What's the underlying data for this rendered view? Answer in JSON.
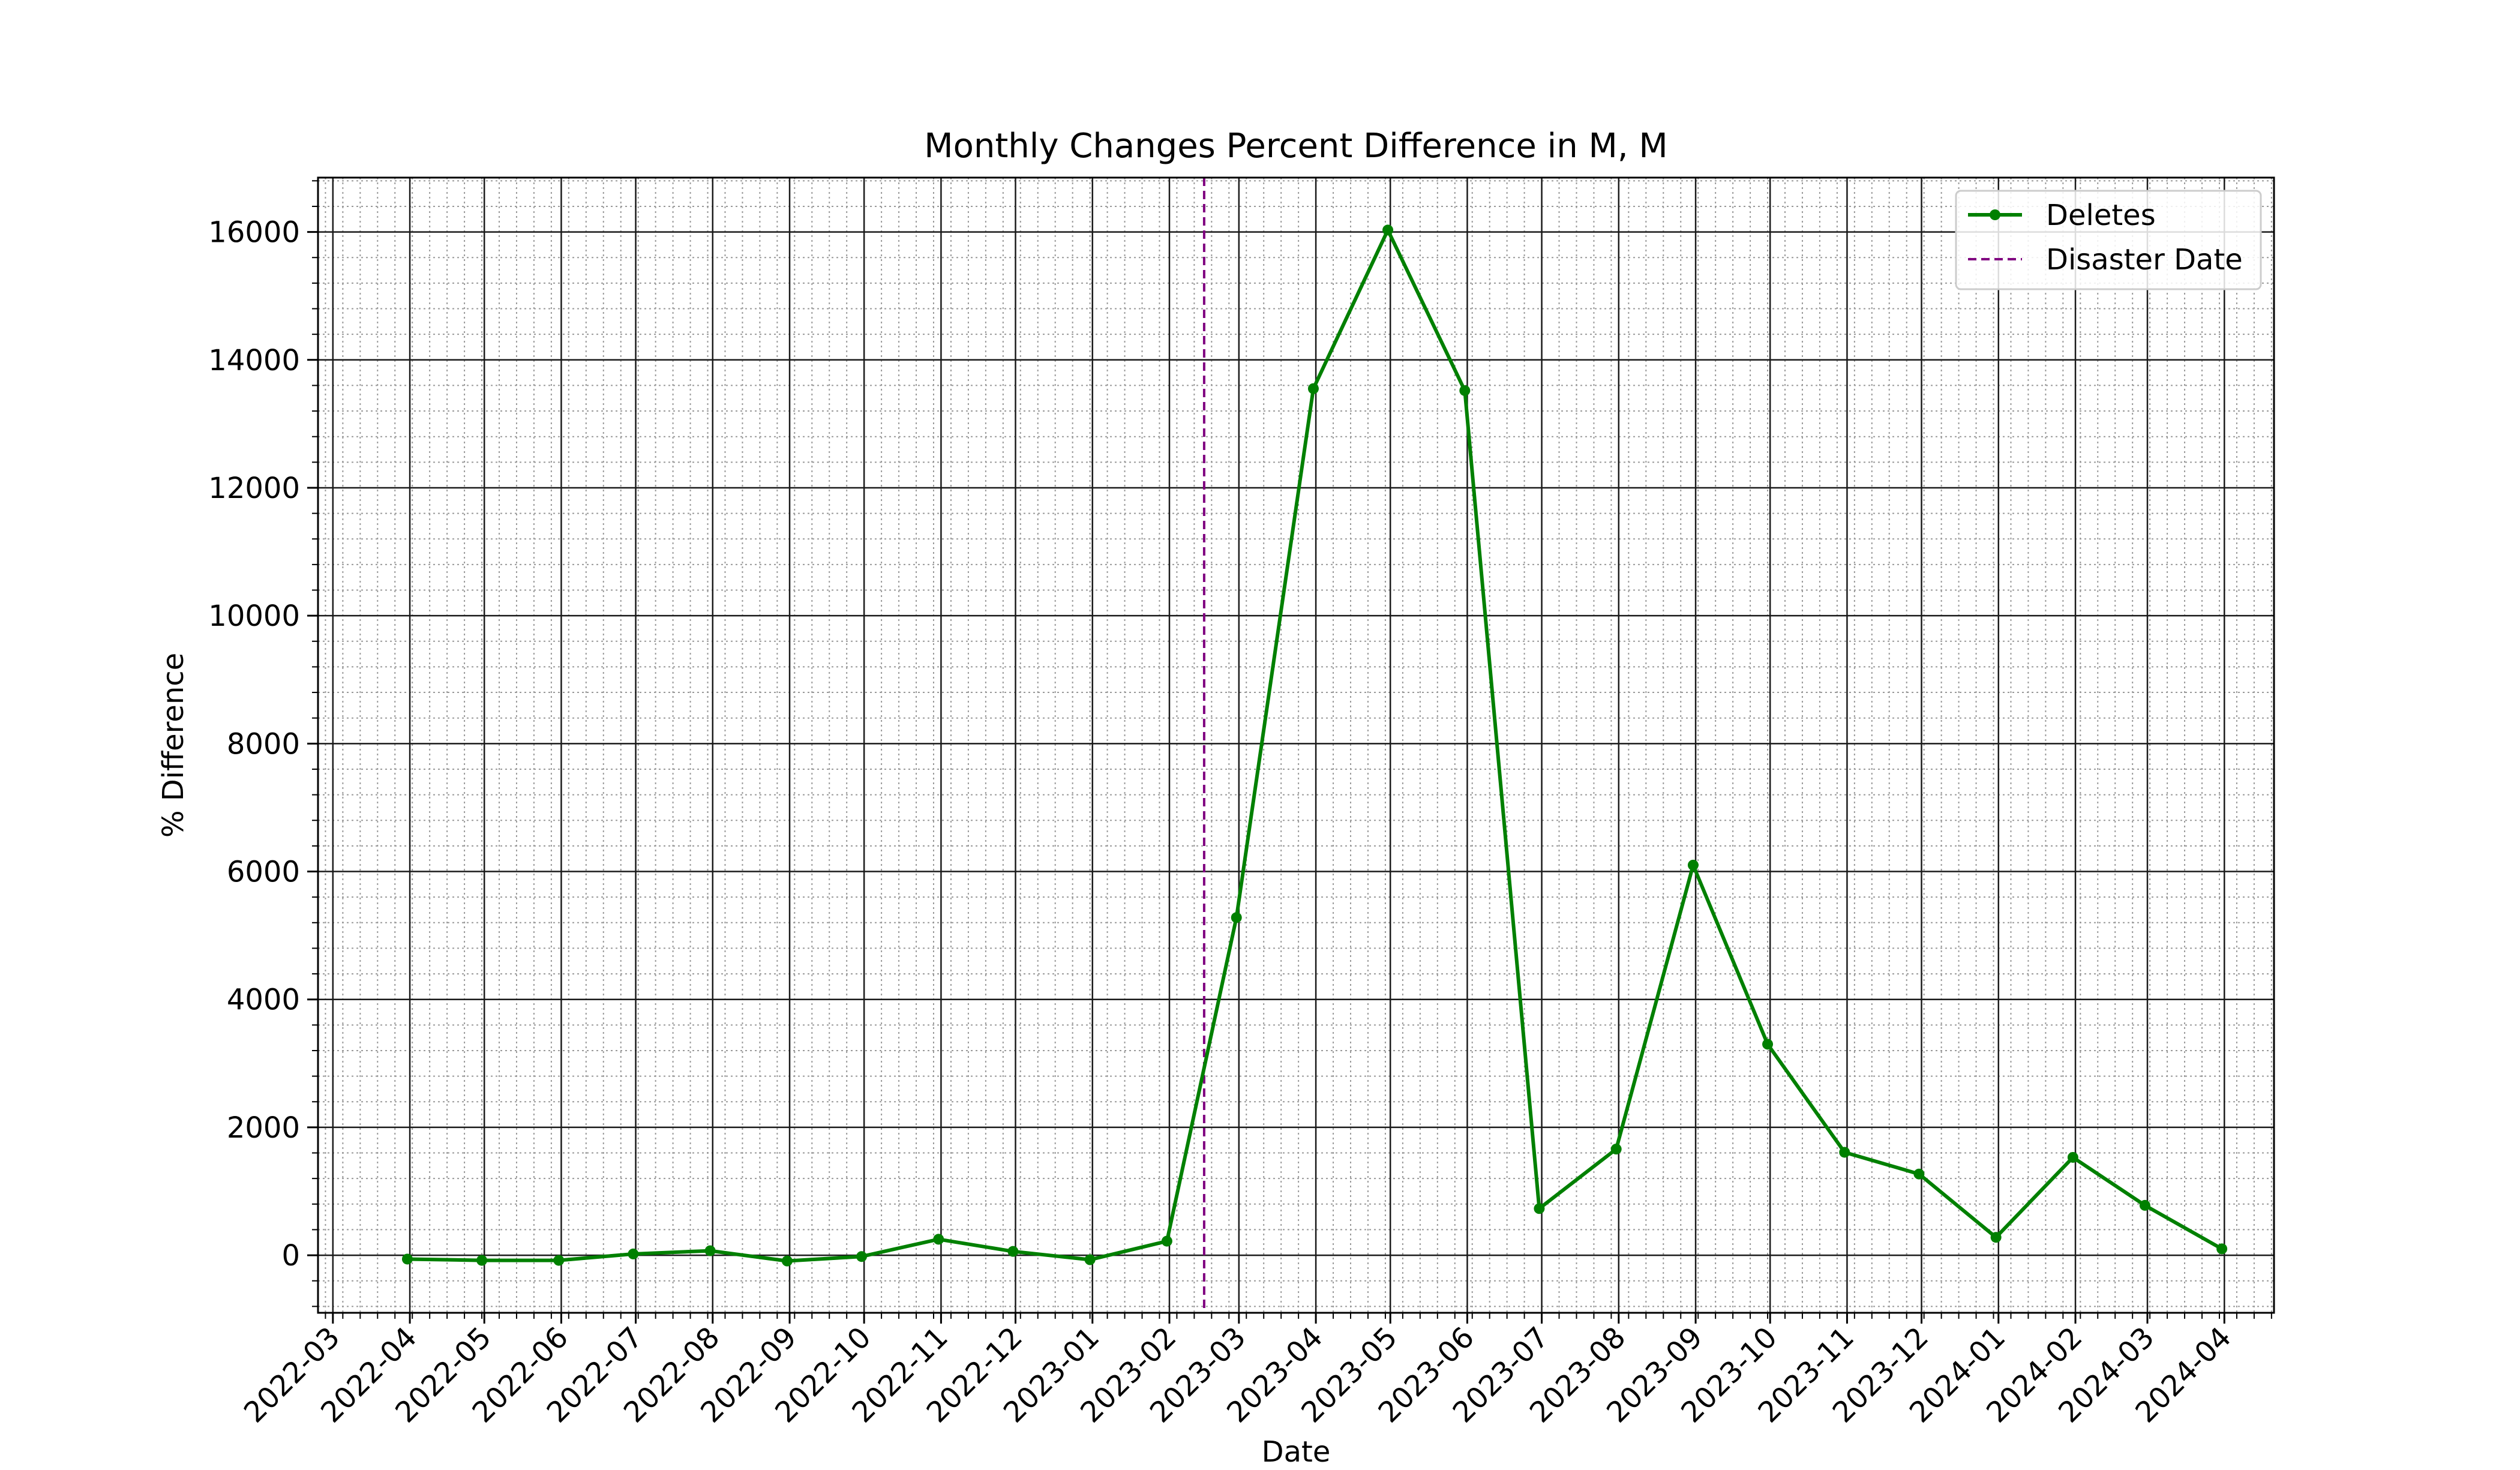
{
  "chart_data": {
    "type": "line",
    "title": "Monthly Changes Percent Difference in M, M",
    "xlabel": "Date",
    "ylabel": "% Difference",
    "x_ticks": [
      "2022-03",
      "2022-04",
      "2022-05",
      "2022-06",
      "2022-07",
      "2022-08",
      "2022-09",
      "2022-10",
      "2022-11",
      "2022-12",
      "2023-01",
      "2023-02",
      "2023-03",
      "2023-04",
      "2023-05",
      "2023-06",
      "2023-07",
      "2023-08",
      "2023-09",
      "2023-10",
      "2023-11",
      "2023-12",
      "2024-01",
      "2024-02",
      "2024-03",
      "2024-04"
    ],
    "y_ticks": [
      0,
      2000,
      4000,
      6000,
      8000,
      10000,
      12000,
      14000,
      16000
    ],
    "ylim": [
      -900,
      16850
    ],
    "xlim": [
      "2022-02-23",
      "2024-04-21"
    ],
    "grid": true,
    "legend_position": "top-right",
    "series": [
      {
        "name": "Deletes",
        "color": "#008000",
        "marker": "circle",
        "points": [
          {
            "x": "2022-03-31",
            "y": -60
          },
          {
            "x": "2022-04-30",
            "y": -80
          },
          {
            "x": "2022-05-31",
            "y": -80
          },
          {
            "x": "2022-06-30",
            "y": 20
          },
          {
            "x": "2022-07-31",
            "y": 70
          },
          {
            "x": "2022-08-31",
            "y": -90
          },
          {
            "x": "2022-09-30",
            "y": -20
          },
          {
            "x": "2022-10-31",
            "y": 250
          },
          {
            "x": "2022-11-30",
            "y": 60
          },
          {
            "x": "2022-12-31",
            "y": -70
          },
          {
            "x": "2023-01-31",
            "y": 220
          },
          {
            "x": "2023-02-28",
            "y": 5280
          },
          {
            "x": "2023-03-31",
            "y": 13550
          },
          {
            "x": "2023-04-30",
            "y": 16030
          },
          {
            "x": "2023-05-31",
            "y": 13520
          },
          {
            "x": "2023-06-30",
            "y": 730
          },
          {
            "x": "2023-07-31",
            "y": 1660
          },
          {
            "x": "2023-08-31",
            "y": 6100
          },
          {
            "x": "2023-09-30",
            "y": 3300
          },
          {
            "x": "2023-10-31",
            "y": 1610
          },
          {
            "x": "2023-11-30",
            "y": 1270
          },
          {
            "x": "2023-12-31",
            "y": 280
          },
          {
            "x": "2024-01-31",
            "y": 1530
          },
          {
            "x": "2024-02-29",
            "y": 780
          },
          {
            "x": "2024-03-31",
            "y": 100
          }
        ]
      }
    ],
    "reference_line": {
      "name": "Disaster Date",
      "x": "2023-02-15",
      "color": "#800080",
      "style": "dashed"
    }
  }
}
